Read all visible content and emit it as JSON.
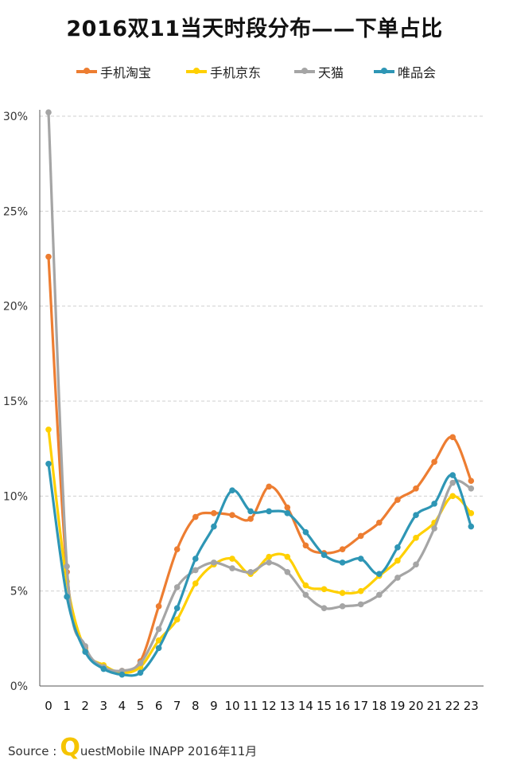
{
  "chart_data": {
    "type": "line",
    "title": "2016双11当天时段分布——下单占比",
    "categories": [
      "0",
      "1",
      "2",
      "3",
      "4",
      "5",
      "6",
      "7",
      "8",
      "9",
      "10",
      "11",
      "12",
      "13",
      "14",
      "15",
      "16",
      "17",
      "18",
      "19",
      "20",
      "21",
      "22",
      "23"
    ],
    "ylim": [
      0,
      30
    ],
    "yticks": [
      "0%",
      "5%",
      "10%",
      "15%",
      "20%",
      "25%",
      "30%"
    ],
    "grid": true,
    "legend_position": "top",
    "series": [
      {
        "name": "手机淘宝",
        "color": "#ED7D31",
        "values": [
          22.6,
          6.0,
          2.0,
          1.0,
          0.8,
          1.3,
          4.2,
          7.2,
          8.9,
          9.1,
          9.0,
          8.8,
          10.5,
          9.4,
          7.4,
          7.0,
          7.2,
          7.9,
          8.6,
          9.8,
          10.4,
          11.8,
          13.1,
          10.8
        ]
      },
      {
        "name": "手机京东",
        "color": "#FFD000",
        "values": [
          13.5,
          5.5,
          1.9,
          1.1,
          0.7,
          1.0,
          2.4,
          3.5,
          5.4,
          6.4,
          6.7,
          5.9,
          6.8,
          6.8,
          5.3,
          5.1,
          4.9,
          5.0,
          5.8,
          6.6,
          7.8,
          8.6,
          10.0,
          9.1
        ]
      },
      {
        "name": "天猫",
        "color": "#A5A5A5",
        "values": [
          30.2,
          6.3,
          2.1,
          1.0,
          0.8,
          1.2,
          3.0,
          5.2,
          6.1,
          6.5,
          6.2,
          6.0,
          6.5,
          6.0,
          4.8,
          4.1,
          4.2,
          4.3,
          4.8,
          5.7,
          6.4,
          8.3,
          10.7,
          10.4
        ]
      },
      {
        "name": "唯品会",
        "color": "#2E96B5",
        "values": [
          11.7,
          4.7,
          1.8,
          0.9,
          0.6,
          0.7,
          2.0,
          4.1,
          6.7,
          8.4,
          10.3,
          9.2,
          9.2,
          9.1,
          8.1,
          6.9,
          6.5,
          6.7,
          5.9,
          7.3,
          9.0,
          9.6,
          11.1,
          8.4
        ]
      }
    ]
  },
  "source": {
    "label": "Source :",
    "q_letter": "Q",
    "rest": "uestMobile INAPP 2016年11月"
  }
}
